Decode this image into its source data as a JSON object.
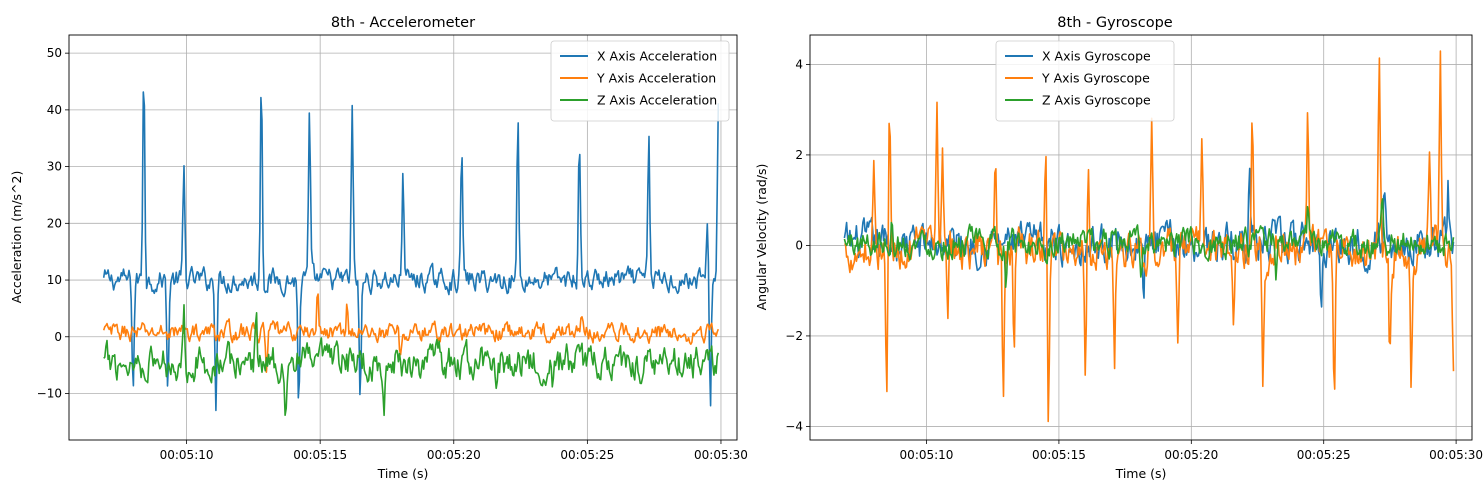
{
  "chart_data": [
    {
      "type": "line",
      "title": "8th - Accelerometer",
      "xlabel": "Time (s)",
      "ylabel": "Acceleration (m/s^2)",
      "x_ticks": [
        "00:05:10",
        "00:05:15",
        "00:05:20",
        "00:05:25",
        "00:05:30"
      ],
      "x_tick_seconds": [
        310,
        315,
        320,
        325,
        330
      ],
      "xlim": [
        305.6,
        330.6
      ],
      "y_ticks": [
        -10,
        0,
        10,
        20,
        30,
        40,
        50
      ],
      "ylim": [
        -18.2,
        53.2
      ],
      "grid": true,
      "legend": "upper right",
      "time_range": [
        306.9,
        329.9
      ],
      "series": [
        {
          "name": "X Axis Acceleration",
          "color": "#1f77b4",
          "baseline": 10,
          "noise": 1.6,
          "spikes": [
            [
              308.4,
              49.5
            ],
            [
              309.9,
              29.0
            ],
            [
              312.8,
              46.5
            ],
            [
              314.6,
              38.2
            ],
            [
              316.2,
              40.6
            ],
            [
              318.1,
              30.5
            ],
            [
              320.3,
              33.4
            ],
            [
              322.4,
              37.9
            ],
            [
              324.7,
              35.5
            ],
            [
              327.3,
              36.5
            ],
            [
              329.5,
              21.0
            ],
            [
              329.9,
              41.0
            ]
          ],
          "dips": [
            [
              308.0,
              -9.5
            ],
            [
              309.3,
              -9.6
            ],
            [
              311.1,
              -11.2
            ],
            [
              314.2,
              -12.6
            ],
            [
              316.5,
              -12.5
            ],
            [
              329.6,
              -12.3
            ]
          ]
        },
        {
          "name": "Y Axis Acceleration",
          "color": "#ff7f0e",
          "baseline": 0.8,
          "noise": 1.3,
          "spikes": [
            [
              314.9,
              7.9
            ],
            [
              316.0,
              5.8
            ],
            [
              324.8,
              4.0
            ]
          ],
          "dips": [
            [
              313.0,
              -5.0
            ],
            [
              318.0,
              -4.5
            ]
          ]
        },
        {
          "name": "Z Axis Acceleration",
          "color": "#2ca02c",
          "baseline": -4.5,
          "noise": 2.4,
          "spikes": [
            [
              309.9,
              3.5
            ],
            [
              312.6,
              2.5
            ]
          ],
          "dips": [
            [
              313.7,
              -14.8
            ],
            [
              317.4,
              -13.5
            ],
            [
              321.6,
              -10.5
            ],
            [
              323.7,
              -10.8
            ]
          ]
        }
      ]
    },
    {
      "type": "line",
      "title": "8th - Gyroscope",
      "xlabel": "Time (s)",
      "ylabel": "Angular Velocity (rad/s)",
      "x_ticks": [
        "00:05:10",
        "00:05:15",
        "00:05:20",
        "00:05:25",
        "00:05:30"
      ],
      "x_tick_seconds": [
        310,
        315,
        320,
        325,
        330
      ],
      "xlim": [
        305.6,
        330.6
      ],
      "y_ticks": [
        -4,
        -2,
        0,
        2,
        4
      ],
      "ylim": [
        -4.3,
        4.65
      ],
      "grid": true,
      "legend": "upper center",
      "time_range": [
        306.9,
        329.9
      ],
      "series": [
        {
          "name": "X Axis Gyroscope",
          "color": "#1f77b4",
          "baseline": 0.05,
          "noise": 0.35,
          "spikes": [
            [
              322.2,
              2.2
            ],
            [
              327.3,
              1.4
            ],
            [
              329.7,
              1.3
            ]
          ],
          "dips": [
            [
              318.2,
              -1.6
            ],
            [
              324.9,
              -1.5
            ]
          ]
        },
        {
          "name": "Y Axis Gyroscope",
          "color": "#ff7f0e",
          "baseline": -0.1,
          "noise": 0.35,
          "spikes": [
            [
              308.0,
              1.9
            ],
            [
              308.6,
              2.95
            ],
            [
              310.4,
              3.15
            ],
            [
              310.6,
              2.5
            ],
            [
              312.6,
              2.25
            ],
            [
              314.5,
              2.0
            ],
            [
              316.1,
              2.05
            ],
            [
              318.5,
              2.65
            ],
            [
              320.4,
              2.75
            ],
            [
              322.3,
              2.55
            ],
            [
              324.4,
              3.15
            ],
            [
              327.1,
              4.25
            ],
            [
              329.4,
              4.1
            ],
            [
              329.0,
              1.65
            ]
          ],
          "dips": [
            [
              308.5,
              -3.55
            ],
            [
              310.8,
              -2.1
            ],
            [
              312.9,
              -3.55
            ],
            [
              313.3,
              -2.3
            ],
            [
              314.6,
              -3.95
            ],
            [
              316.0,
              -2.75
            ],
            [
              317.1,
              -2.55
            ],
            [
              319.5,
              -2.4
            ],
            [
              321.6,
              -2.05
            ],
            [
              322.7,
              -2.9
            ],
            [
              325.4,
              -2.9
            ],
            [
              327.5,
              -2.5
            ],
            [
              328.3,
              -3.0
            ],
            [
              329.9,
              -2.85
            ]
          ]
        },
        {
          "name": "Z Axis Gyroscope",
          "color": "#2ca02c",
          "baseline": 0.05,
          "noise": 0.25,
          "spikes": [
            [
              308.7,
              0.7
            ],
            [
              324.4,
              0.95
            ],
            [
              327.2,
              1.0
            ]
          ],
          "dips": [
            [
              313.0,
              -0.9
            ],
            [
              318.1,
              -0.95
            ],
            [
              323.2,
              -0.85
            ]
          ]
        }
      ]
    }
  ]
}
